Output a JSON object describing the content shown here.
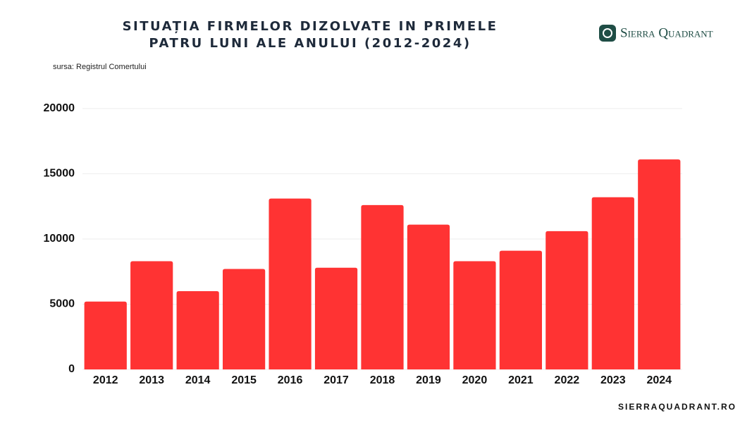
{
  "chart_data": {
    "type": "bar",
    "title": [
      "SITUAȚIA FIRMELOR DIZOLVATE IN PRIMELE",
      "PATRU LUNI ALE ANULUI (2012-2024)"
    ],
    "subtitle": "sursa: Registrul Comertului",
    "brand": "Sierra Quadrant",
    "footer": "SIERRAQUADRANT.RO",
    "categories": [
      "2012",
      "2013",
      "2014",
      "2015",
      "2016",
      "2017",
      "2018",
      "2019",
      "2020",
      "2021",
      "2022",
      "2023",
      "2024"
    ],
    "values": [
      5200,
      8300,
      6000,
      7700,
      13100,
      7800,
      12600,
      11100,
      8300,
      9100,
      10600,
      13200,
      16100
    ],
    "color": "#ff3333",
    "ylim": [
      0,
      20000
    ],
    "yticks": [
      0,
      5000,
      10000,
      15000,
      20000
    ],
    "grid": true
  }
}
